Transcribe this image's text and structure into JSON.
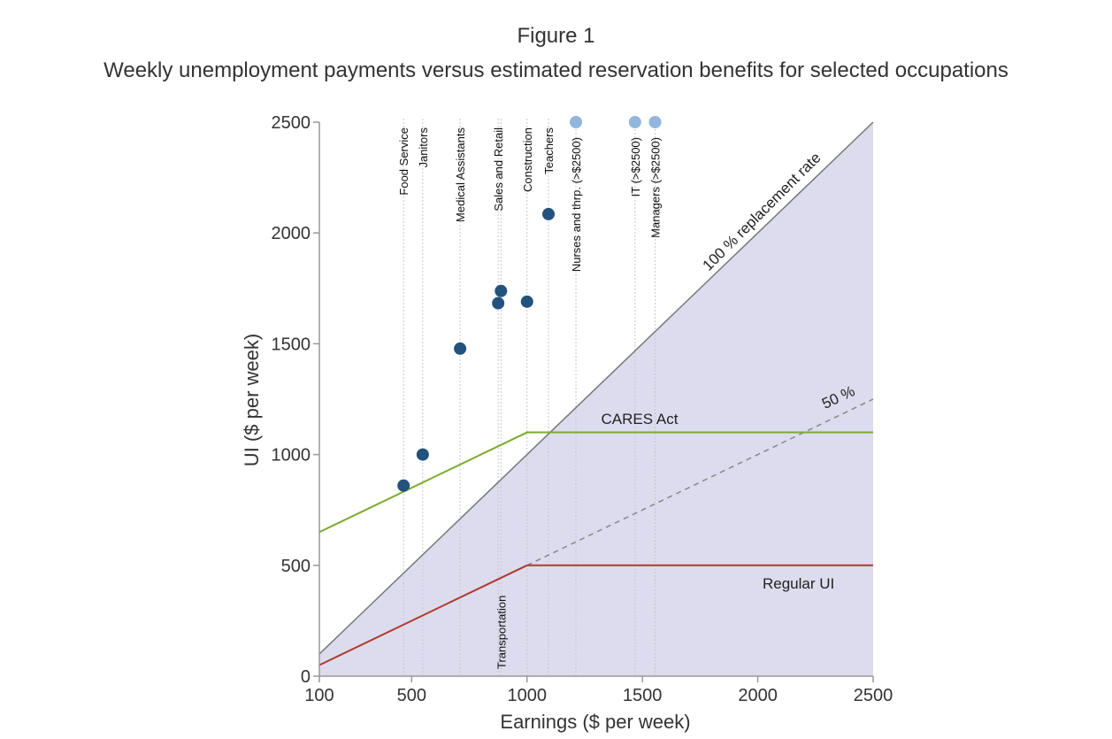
{
  "figure": {
    "label": "Figure 1",
    "title": "Weekly unemployment payments versus estimated reservation benefits for selected occupations"
  },
  "chart_data": {
    "type": "line",
    "xlabel": "Earnings ($ per week)",
    "ylabel": "UI ($ per week)",
    "xlim": [
      100,
      2500
    ],
    "ylim": [
      0,
      2500
    ],
    "x_ticks": [
      100,
      500,
      1000,
      1500,
      2000,
      2500
    ],
    "y_ticks": [
      0,
      500,
      1000,
      1500,
      2000,
      2500
    ],
    "grid": false,
    "shaded_region": {
      "description_label": "",
      "bounds": "below 100% replacement line",
      "color": "#dddcee"
    },
    "lines": [
      {
        "name": "100 % replacement rate",
        "label": "100 % replacement rate",
        "style": "solid",
        "color": "#777777",
        "points": [
          [
            100,
            100
          ],
          [
            2500,
            2500
          ]
        ]
      },
      {
        "name": "50 %",
        "label": "50 %",
        "style": "dashed",
        "color": "#888888",
        "points": [
          [
            1000,
            500
          ],
          [
            2500,
            1250
          ]
        ]
      },
      {
        "name": "CARES Act",
        "label": "CARES Act",
        "style": "solid",
        "color": "#7bab2b",
        "points": [
          [
            100,
            650
          ],
          [
            1000,
            1100
          ],
          [
            2500,
            1100
          ]
        ]
      },
      {
        "name": "Regular UI",
        "label": "Regular UI",
        "style": "solid",
        "color": "#b03a2e",
        "points": [
          [
            100,
            50
          ],
          [
            1000,
            500
          ],
          [
            2500,
            500
          ]
        ]
      }
    ],
    "occupations": [
      {
        "label": "Food Service",
        "x": 465,
        "y": 860,
        "above_range": false
      },
      {
        "label": "Janitors",
        "x": 548,
        "y": 1000,
        "above_range": false
      },
      {
        "label": "Medical Assistants",
        "x": 710,
        "y": 1478,
        "above_range": false
      },
      {
        "label": "Sales and Retail",
        "x": 875,
        "y": 1683,
        "above_range": false
      },
      {
        "label": "Transportation",
        "x": 887,
        "y": 1738,
        "above_range": false
      },
      {
        "label": "Construction",
        "x": 1000,
        "y": 1690,
        "above_range": false
      },
      {
        "label": "Teachers",
        "x": 1093,
        "y": 2085,
        "above_range": false
      },
      {
        "label": "Nurses and thrp. (>$2500)",
        "x": 1212,
        "y": 2500,
        "above_range": true
      },
      {
        "label": "IT (>$2500)",
        "x": 1468,
        "y": 2500,
        "above_range": true
      },
      {
        "label": "Managers (>$2500)",
        "x": 1555,
        "y": 2500,
        "above_range": true
      }
    ],
    "colors": {
      "point": "#24527e",
      "point_above_range": "#92b7dd",
      "axis": "#999999",
      "guide": "#c8c8c8"
    }
  }
}
